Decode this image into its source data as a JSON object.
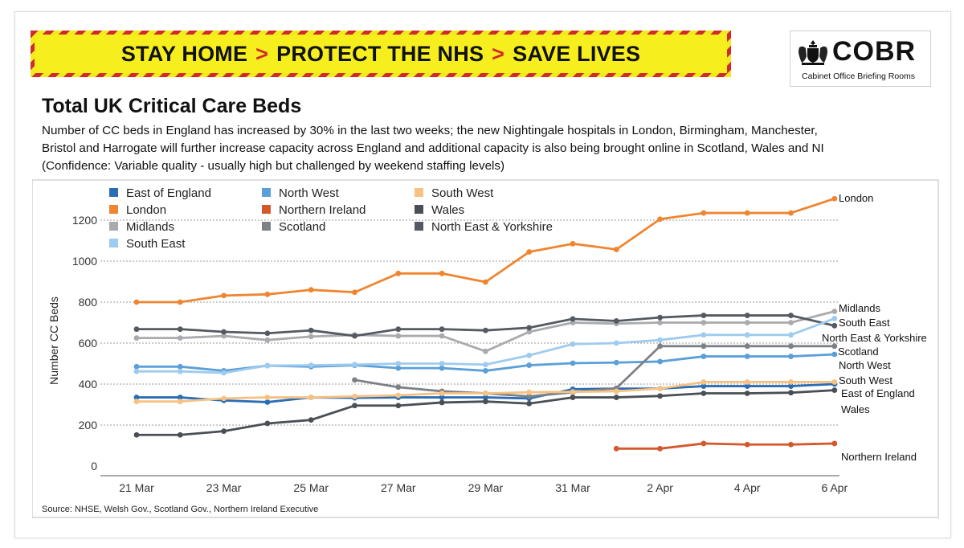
{
  "banner": {
    "part1": "STAY HOME",
    "sep1": ">",
    "part2": "PROTECT THE NHS",
    "sep2": ">",
    "part3": "SAVE LIVES"
  },
  "logo": {
    "title": "COBR",
    "subtitle": "Cabinet Office Briefing Rooms",
    "crest_icon": "royal-crest-icon"
  },
  "header": {
    "title": "Total UK Critical Care Beds",
    "line1": "Number of CC beds in England has increased by 30% in the last two weeks; the new Nightingale hospitals in London, Birmingham, Manchester,",
    "line2": "Bristol and Harrogate will further increase capacity across England and additional capacity is also being brought online in Scotland, Wales and NI",
    "line3": "(Confidence: Variable quality - usually high but challenged by weekend staffing levels)"
  },
  "source": "Source: NHSE, Welsh Gov., Scotland Gov., Northern Ireland Executive",
  "chart_data": {
    "type": "line",
    "title": "Total UK Critical Care Beds",
    "xlabel": "",
    "ylabel": "Number CC Beds",
    "ylim": [
      0,
      1300
    ],
    "yticks": [
      0,
      200,
      400,
      600,
      800,
      1000,
      1200
    ],
    "ytick_labels": [
      "0",
      "200",
      "400",
      "600",
      "800",
      "1000",
      "1200"
    ],
    "x": [
      "21 Mar",
      "22 Mar",
      "23 Mar",
      "24 Mar",
      "25 Mar",
      "26 Mar",
      "27 Mar",
      "28 Mar",
      "29 Mar",
      "30 Mar",
      "31 Mar",
      "1 Apr",
      "2 Apr",
      "3 Apr",
      "4 Apr",
      "5 Apr",
      "6 Apr"
    ],
    "xtick_labels": [
      "21 Mar",
      "23 Mar",
      "25 Mar",
      "27 Mar",
      "29 Mar",
      "31 Mar",
      "2 Apr",
      "4 Apr",
      "6 Apr"
    ],
    "grid": "horizontal dotted",
    "legend_position": "top-left",
    "series": [
      {
        "name": "East of England",
        "color": "#2a6db4",
        "end_label": "East of England",
        "values": [
          335,
          335,
          320,
          312,
          335,
          333,
          335,
          335,
          335,
          330,
          375,
          378,
          378,
          390,
          390,
          390,
          400
        ]
      },
      {
        "name": "London",
        "color": "#ef8530",
        "end_label": "London",
        "values": [
          800,
          800,
          832,
          838,
          860,
          848,
          940,
          940,
          898,
          1045,
          1085,
          1057,
          1205,
          1235,
          1235,
          1235,
          1305
        ]
      },
      {
        "name": "Midlands",
        "color": "#a8aaad",
        "end_label": "Midlands",
        "values": [
          625,
          625,
          635,
          615,
          632,
          640,
          635,
          635,
          560,
          655,
          700,
          695,
          700,
          700,
          700,
          700,
          755
        ]
      },
      {
        "name": "North East & Yorkshire",
        "color": "#545a62",
        "end_label": "North East & Yorkshire",
        "values": [
          668,
          668,
          655,
          648,
          662,
          635,
          668,
          668,
          662,
          675,
          718,
          708,
          725,
          735,
          735,
          735,
          685
        ]
      },
      {
        "name": "North West",
        "color": "#5b9fd8",
        "end_label": "North West",
        "values": [
          485,
          485,
          465,
          490,
          485,
          492,
          478,
          478,
          465,
          492,
          502,
          505,
          510,
          535,
          535,
          535,
          545
        ]
      },
      {
        "name": "Northern Ireland",
        "color": "#d4582b",
        "end_label": "Northern Ireland",
        "values": [
          null,
          null,
          null,
          null,
          null,
          null,
          null,
          null,
          null,
          null,
          null,
          85,
          85,
          110,
          105,
          105,
          110
        ]
      },
      {
        "name": "Scotland",
        "color": "#7d8186",
        "end_label": "Scotland",
        "values": [
          null,
          null,
          null,
          null,
          null,
          420,
          385,
          365,
          355,
          340,
          360,
          380,
          585,
          585,
          585,
          585,
          585
        ]
      },
      {
        "name": "South East",
        "color": "#9ecbee",
        "end_label": "South East",
        "values": [
          462,
          462,
          455,
          490,
          492,
          495,
          500,
          500,
          495,
          540,
          595,
          600,
          615,
          640,
          640,
          640,
          720
        ]
      },
      {
        "name": "South West",
        "color": "#f6c284",
        "end_label": "South West",
        "values": [
          315,
          315,
          330,
          335,
          335,
          340,
          345,
          355,
          355,
          360,
          362,
          365,
          378,
          410,
          410,
          410,
          410
        ]
      },
      {
        "name": "Wales",
        "color": "#4a4f56",
        "end_label": "Wales",
        "values": [
          152,
          152,
          170,
          208,
          225,
          295,
          295,
          310,
          315,
          305,
          335,
          335,
          342,
          355,
          355,
          358,
          370
        ]
      }
    ],
    "legend_order": [
      "East of England",
      "North West",
      "South West",
      "London",
      "Northern Ireland",
      "Wales",
      "Midlands",
      "Scotland",
      "North East & Yorkshire",
      "South East"
    ]
  }
}
